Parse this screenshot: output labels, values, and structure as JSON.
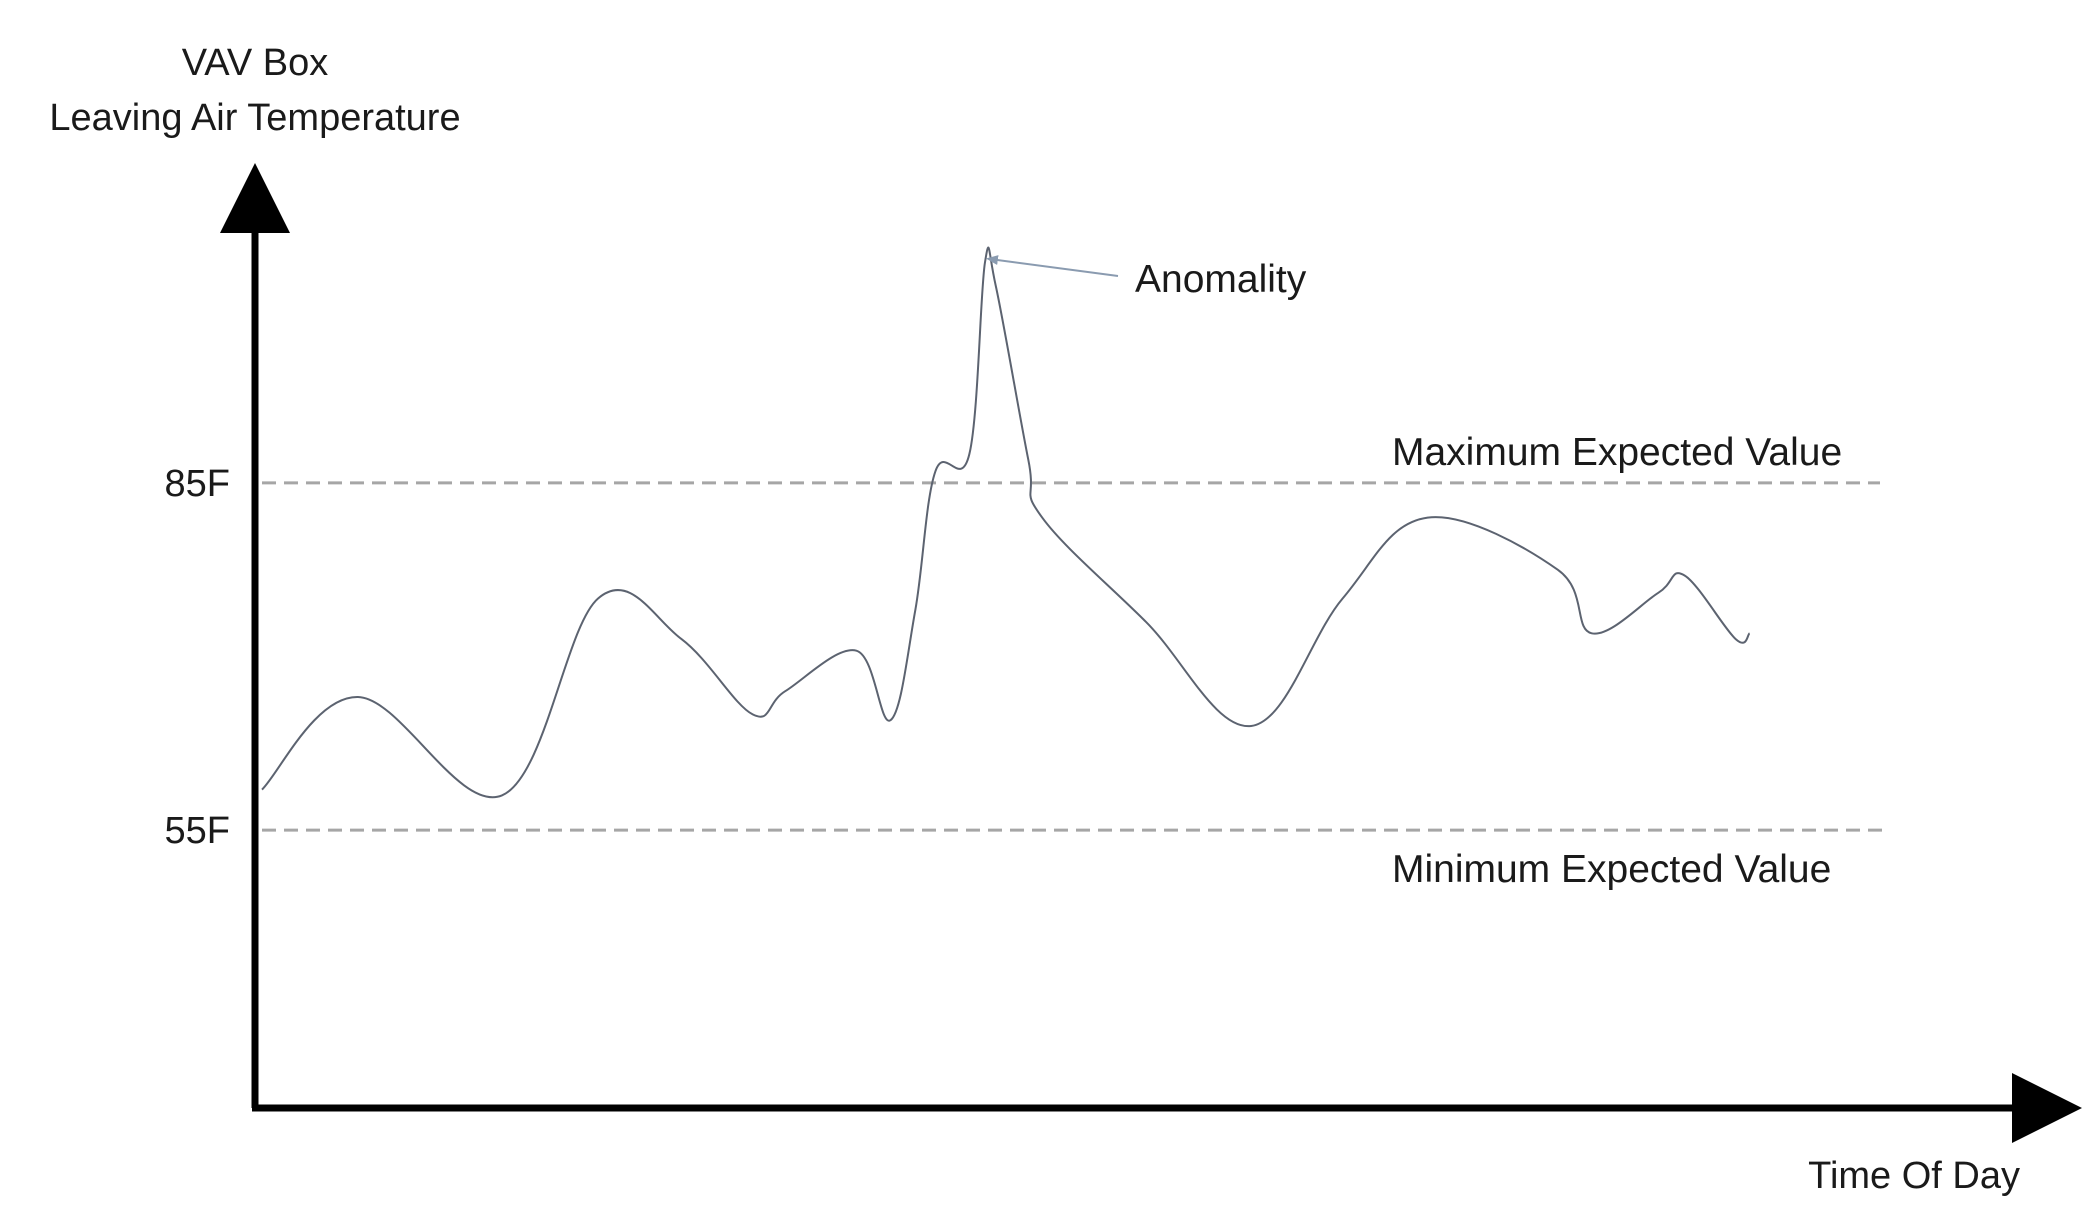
{
  "chart_data": {
    "type": "line",
    "title": "",
    "ylabel_lines": [
      "VAV Box",
      "Leaving Air Temperature"
    ],
    "xlabel": "Time Of Day",
    "y_range": [
      31,
      109
    ],
    "x_range": [
      0,
      100
    ],
    "y_ticks": [
      {
        "value": 85,
        "label": "85F"
      },
      {
        "value": 55,
        "label": "55F"
      }
    ],
    "reference_lines": [
      {
        "name": "maximum",
        "value": 85,
        "label": "Maximum Expected Value",
        "style": "dashed"
      },
      {
        "name": "minimum",
        "value": 55,
        "label": "Minimum Expected Value",
        "style": "dashed"
      }
    ],
    "annotation": {
      "text": "Anomality",
      "point_x": 46.7
    },
    "series": [
      {
        "x": [
          0,
          6.2,
          15.5,
          21.7,
          27.1,
          31.7,
          33.8,
          38.4,
          40.6,
          42.2,
          43.5,
          45.7,
          46.7,
          47.4,
          49.5,
          50.4,
          57.1,
          63.9,
          69.8,
          75.3,
          83.7,
          85.9,
          90.2,
          91.9,
          95.2,
          96.1
        ],
        "y": [
          58.5,
          66.5,
          58,
          75,
          71.5,
          65,
          67,
          70.5,
          64.5,
          74,
          86,
          87.5,
          104,
          102,
          87,
          82,
          73,
          64,
          75,
          82,
          77.5,
          72,
          75.5,
          77,
          71.5,
          72
        ]
      }
    ],
    "colors": {
      "line": "#5c6370",
      "reference": "#a6a6a6",
      "axis": "#000000",
      "arrow": "#8a9bb0"
    },
    "grid": false
  }
}
